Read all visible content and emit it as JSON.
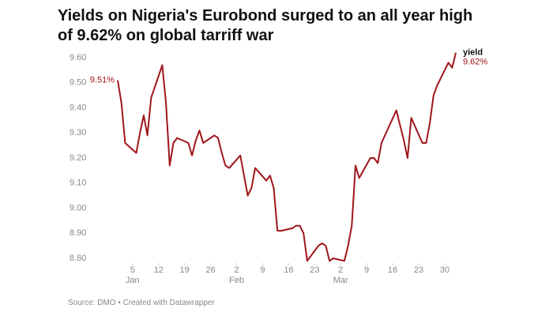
{
  "chart_data": {
    "type": "line",
    "title": "Yields on Nigeria's Eurobond surged to an all year high of 9.62% on global tarriff war",
    "source": "Source: DMO • Created with Datawrapper",
    "grid": false,
    "xlim": [
      1,
      92
    ],
    "ylim": [
      8.8,
      9.6
    ],
    "yticks": [
      {
        "value": 8.8,
        "label": "8.80"
      },
      {
        "value": 8.9,
        "label": "8.90"
      },
      {
        "value": 9.0,
        "label": "9.00"
      },
      {
        "value": 9.1,
        "label": "9.10"
      },
      {
        "value": 9.2,
        "label": "9.20"
      },
      {
        "value": 9.3,
        "label": "9.30"
      },
      {
        "value": 9.4,
        "label": "9.40"
      },
      {
        "value": 9.5,
        "label": "9.50"
      },
      {
        "value": 9.6,
        "label": "9.60"
      }
    ],
    "xticks": [
      5,
      12,
      19,
      26,
      {
        "value": 33,
        "label": "2"
      },
      {
        "value": 40,
        "label": "9"
      },
      {
        "value": 47,
        "label": "16"
      },
      {
        "value": 54,
        "label": "23"
      },
      {
        "value": 61,
        "label": "2"
      },
      {
        "value": 68,
        "label": "9"
      },
      {
        "value": 75,
        "label": "16"
      },
      {
        "value": 82,
        "label": "23"
      },
      {
        "value": 89,
        "label": "30"
      }
    ],
    "month_labels": [
      {
        "value": 5,
        "label": "Jan"
      },
      {
        "value": 33,
        "label": "Feb"
      },
      {
        "value": 61,
        "label": "Mar"
      }
    ],
    "x": [
      1,
      2,
      3,
      6,
      7,
      8,
      9,
      10,
      13,
      14,
      15,
      16,
      17,
      20,
      21,
      22,
      23,
      24,
      27,
      28,
      29,
      30,
      31,
      34,
      35,
      36,
      37,
      38,
      41,
      42,
      43,
      44,
      45,
      48,
      49,
      50,
      51,
      52,
      55,
      56,
      57,
      58,
      59,
      62,
      63,
      64,
      65,
      66,
      69,
      70,
      71,
      72,
      76,
      78,
      79,
      80,
      83,
      84,
      85,
      86,
      87,
      90,
      91,
      92
    ],
    "series": [
      {
        "name": "yield",
        "color": "#a0151c",
        "values": [
          9.51,
          9.42,
          9.26,
          9.22,
          9.3,
          9.37,
          9.29,
          9.44,
          9.57,
          9.42,
          9.17,
          9.26,
          9.28,
          9.26,
          9.21,
          9.27,
          9.31,
          9.26,
          9.29,
          9.28,
          9.22,
          9.17,
          9.16,
          9.21,
          9.13,
          9.05,
          9.08,
          9.16,
          9.11,
          9.13,
          9.08,
          8.91,
          8.91,
          8.92,
          8.93,
          8.93,
          8.9,
          8.79,
          8.85,
          8.86,
          8.85,
          8.79,
          8.8,
          8.79,
          8.85,
          8.93,
          9.17,
          9.12,
          9.2,
          9.2,
          9.18,
          9.26,
          9.39,
          9.27,
          9.2,
          9.36,
          9.26,
          9.26,
          9.34,
          9.45,
          9.49,
          9.58,
          9.56,
          9.62
        ],
        "value_labels": [
          "9.51%",
          null,
          null,
          null,
          null,
          null,
          null,
          null,
          null,
          null,
          null,
          null,
          null,
          null,
          null,
          null,
          null,
          null,
          null,
          null,
          null,
          null,
          null,
          null,
          null,
          null,
          null,
          null,
          null,
          null,
          null,
          null,
          null,
          null,
          null,
          null,
          null,
          null,
          null,
          null,
          null,
          null,
          null,
          null,
          null,
          null,
          null,
          null,
          null,
          null,
          null,
          null,
          null,
          null,
          null,
          null,
          null,
          null,
          null,
          null,
          null,
          null,
          null,
          "9.62%"
        ]
      }
    ]
  }
}
